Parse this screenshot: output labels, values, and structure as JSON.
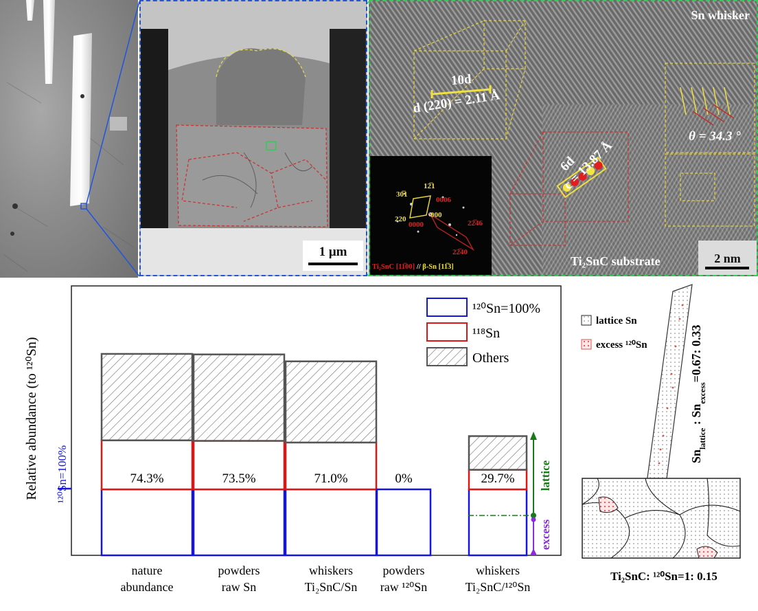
{
  "panels": {
    "tem": {
      "scale": "1 μm"
    },
    "hrtem": {
      "title_sn": "Sn whisker",
      "title_sub": "Ti₂SnC substrate",
      "scale": "2 nm",
      "d_spacing": "d (220) = 2.11 Å",
      "tend": "10d",
      "sixd": "6d",
      "c_spacing": "c = 13.87 Å",
      "theta": "θ = 34.3 °",
      "fft": {
        "spots_yellow": [
          "30̅1",
          "12̅1",
          "220",
          "000"
        ],
        "spots_red": [
          "0006",
          "0000",
          "22̅46",
          "22̅40"
        ],
        "zone_a": "Ti₂SnC [11̅00]",
        "zone_sep": " // ",
        "zone_b": "β-Sn [11̅3]"
      }
    }
  },
  "chart_data": {
    "type": "bar",
    "ylabel": "Relative abundance (to ¹²⁰Sn)",
    "categories": [
      [
        "nature",
        "abundance"
      ],
      [
        "powders",
        "raw Sn"
      ],
      [
        "whiskers",
        "Ti₂SnC/Sn"
      ],
      [
        "powders",
        "raw ¹²⁰Sn"
      ],
      [
        "whiskers",
        "Ti₂SnC/¹²⁰Sn"
      ]
    ],
    "series": [
      {
        "name": "¹²⁰Sn=100%",
        "color": "#1515e0",
        "values": [
          1,
          1,
          1,
          1,
          1
        ]
      },
      {
        "name": "¹¹⁸Sn",
        "color": "#e01515",
        "values": [
          0.743,
          0.735,
          0.71,
          0,
          0.297
        ]
      },
      {
        "name": "Others",
        "color": "#555555",
        "values": [
          1.31,
          1.31,
          1.23,
          0,
          0.51
        ]
      }
    ],
    "bar_labels": [
      "74.3%",
      "73.5%",
      "71.0%",
      "0%",
      "29.7%"
    ],
    "ref_label": "¹²⁰Sn=100%",
    "annotations": {
      "lattice": "lattice",
      "excess": "excess"
    },
    "ylim": [
      0,
      4.05
    ]
  },
  "model": {
    "legend_lattice": "lattice Sn",
    "legend_excess": "excess ¹²⁰Sn",
    "ratio_pre": "Sn",
    "ratio_sub1": "lattice",
    "ratio_mid": " : Sn",
    "ratio_sub2": "excess",
    "ratio_post": "=0.67: 0.33",
    "bottom": "Ti₂SnC: ¹²⁰Sn=1: 0.15"
  }
}
